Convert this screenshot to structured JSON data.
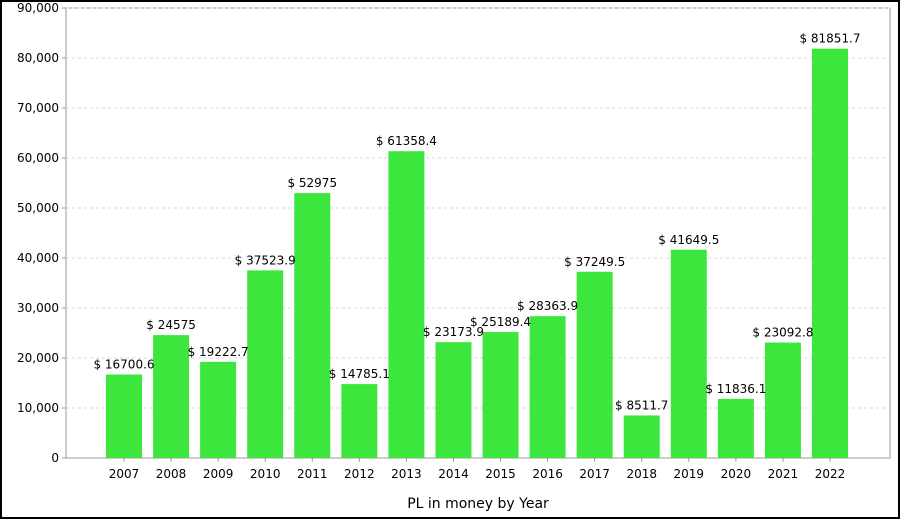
{
  "chart_data": {
    "type": "bar",
    "title": "",
    "xlabel": "PL in money by Year",
    "ylabel": "",
    "ylim": [
      0,
      90000
    ],
    "yticks": [
      0,
      10000,
      20000,
      30000,
      40000,
      50000,
      60000,
      70000,
      80000,
      90000
    ],
    "ytick_labels": [
      "0",
      "10,000",
      "20,000",
      "30,000",
      "40,000",
      "50,000",
      "60,000",
      "70,000",
      "80,000",
      "90,000"
    ],
    "grid": "horizontal-dashed",
    "legend": "none",
    "bar_color": "#3de63d",
    "label_prefix": "$ ",
    "categories": [
      "2007",
      "2008",
      "2009",
      "2010",
      "2011",
      "2012",
      "2013",
      "2014",
      "2015",
      "2016",
      "2017",
      "2018",
      "2019",
      "2020",
      "2021",
      "2022"
    ],
    "values": [
      16700.6,
      24575,
      19222.7,
      37523.9,
      52975,
      14785.1,
      61358.4,
      23173.9,
      25189.4,
      28363.9,
      37249.5,
      8511.7,
      41649.5,
      11836.1,
      23092.8,
      81851.7
    ],
    "data_labels": [
      "$ 16700.6",
      "$ 24575",
      "$ 19222.7",
      "$ 37523.9",
      "$ 52975",
      "$ 14785.1",
      "$ 61358.4",
      "$ 23173.9",
      "$ 25189.4",
      "$ 28363.9",
      "$ 37249.5",
      "$ 8511.7",
      "$ 41649.5",
      "$ 11836.1",
      "$ 23092.8",
      "$ 81851.7"
    ]
  }
}
